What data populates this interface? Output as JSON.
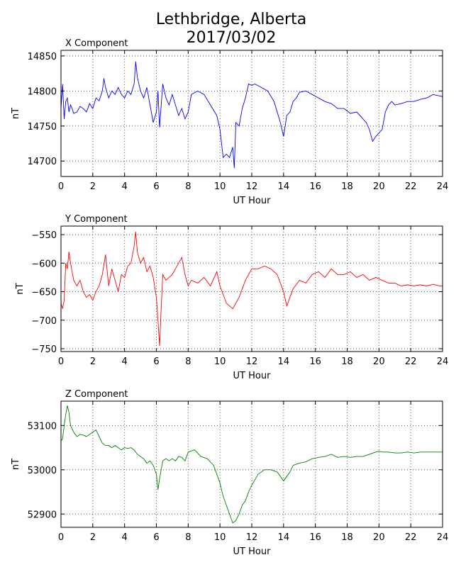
{
  "figure_title_line1": "Lethbridge, Alberta",
  "figure_title_line2": "2017/03/02",
  "colors": {
    "X": "#0000ff",
    "Y": "#ff0000",
    "Z": "#008000",
    "grid": "#555555"
  },
  "chart_data": [
    {
      "type": "line",
      "title": "X Component",
      "xlabel": "UT Hour",
      "ylabel": "nT",
      "xlim": [
        0,
        24
      ],
      "ylim": [
        14678,
        14858
      ],
      "xticks": [
        0,
        2,
        4,
        6,
        8,
        10,
        12,
        14,
        16,
        18,
        20,
        22,
        24
      ],
      "yticks": [
        14700,
        14750,
        14800,
        14850
      ],
      "grid": true,
      "series": [
        {
          "color": "#0000ff",
          "x": [
            0,
            0.1,
            0.2,
            0.3,
            0.4,
            0.5,
            0.6,
            0.7,
            0.8,
            1.0,
            1.2,
            1.4,
            1.6,
            1.8,
            2.0,
            2.2,
            2.4,
            2.6,
            2.7,
            2.8,
            3.0,
            3.2,
            3.4,
            3.6,
            3.8,
            4.0,
            4.2,
            4.4,
            4.6,
            4.7,
            4.8,
            5.0,
            5.2,
            5.4,
            5.6,
            5.8,
            6.0,
            6.1,
            6.2,
            6.4,
            6.6,
            6.8,
            7.0,
            7.2,
            7.4,
            7.6,
            7.8,
            8.0,
            8.2,
            8.6,
            9.0,
            9.4,
            9.8,
            10.0,
            10.2,
            10.4,
            10.6,
            10.8,
            10.9,
            11.0,
            11.2,
            11.4,
            11.6,
            11.8,
            12.0,
            12.2,
            12.6,
            13.0,
            13.4,
            13.8,
            14.0,
            14.2,
            14.4,
            14.6,
            14.8,
            15.0,
            15.4,
            15.8,
            16.2,
            16.6,
            17.0,
            17.4,
            17.8,
            18.2,
            18.6,
            19.0,
            19.2,
            19.4,
            19.6,
            19.8,
            20.0,
            20.2,
            20.4,
            20.6,
            20.8,
            21.0,
            21.4,
            21.8,
            22.2,
            22.6,
            23.0,
            23.4,
            23.8,
            24.0
          ],
          "y": [
            14775,
            14810,
            14760,
            14785,
            14790,
            14770,
            14780,
            14775,
            14768,
            14770,
            14778,
            14775,
            14770,
            14782,
            14775,
            14790,
            14786,
            14800,
            14818,
            14805,
            14790,
            14800,
            14795,
            14805,
            14795,
            14790,
            14800,
            14795,
            14810,
            14842,
            14820,
            14800,
            14790,
            14805,
            14780,
            14755,
            14770,
            14800,
            14748,
            14810,
            14790,
            14780,
            14795,
            14780,
            14765,
            14775,
            14760,
            14770,
            14795,
            14800,
            14795,
            14780,
            14765,
            14745,
            14705,
            14710,
            14705,
            14720,
            14690,
            14755,
            14750,
            14775,
            14790,
            14810,
            14808,
            14810,
            14805,
            14800,
            14785,
            14755,
            14735,
            14765,
            14770,
            14785,
            14790,
            14798,
            14800,
            14795,
            14790,
            14785,
            14782,
            14775,
            14775,
            14768,
            14770,
            14760,
            14755,
            14745,
            14728,
            14735,
            14740,
            14745,
            14770,
            14780,
            14785,
            14780,
            14782,
            14785,
            14785,
            14788,
            14790,
            14795,
            14793,
            14792
          ]
        }
      ]
    },
    {
      "type": "line",
      "title": "Y Component",
      "xlabel": "UT Hour",
      "ylabel": "nT",
      "xlim": [
        0,
        24
      ],
      "ylim": [
        -755,
        -535
      ],
      "xticks": [
        0,
        2,
        4,
        6,
        8,
        10,
        12,
        14,
        16,
        18,
        20,
        22,
        24
      ],
      "yticks": [
        -550,
        -600,
        -650,
        -700,
        -750
      ],
      "grid": true,
      "series": [
        {
          "color": "#ff0000",
          "x": [
            0,
            0.1,
            0.2,
            0.3,
            0.4,
            0.5,
            0.6,
            0.8,
            1.0,
            1.2,
            1.4,
            1.6,
            1.8,
            2.0,
            2.2,
            2.4,
            2.6,
            2.8,
            3.0,
            3.2,
            3.4,
            3.6,
            3.8,
            4.0,
            4.2,
            4.4,
            4.6,
            4.7,
            4.8,
            5.0,
            5.2,
            5.4,
            5.6,
            5.8,
            6.0,
            6.1,
            6.2,
            6.3,
            6.4,
            6.6,
            6.8,
            7.0,
            7.2,
            7.4,
            7.6,
            7.8,
            8.0,
            8.2,
            8.6,
            9.0,
            9.4,
            9.8,
            10.0,
            10.4,
            10.8,
            11.0,
            11.2,
            11.6,
            12.0,
            12.4,
            12.8,
            13.2,
            13.6,
            14.0,
            14.2,
            14.4,
            14.6,
            15.0,
            15.4,
            15.8,
            16.2,
            16.6,
            17.0,
            17.4,
            17.8,
            18.2,
            18.6,
            19.0,
            19.4,
            19.8,
            20.2,
            20.6,
            21.0,
            21.4,
            21.8,
            22.2,
            22.6,
            23.0,
            23.4,
            23.8,
            24.0
          ],
          "y": [
            -670,
            -680,
            -665,
            -600,
            -610,
            -580,
            -600,
            -630,
            -640,
            -630,
            -650,
            -660,
            -655,
            -665,
            -650,
            -640,
            -620,
            -585,
            -640,
            -610,
            -630,
            -650,
            -620,
            -625,
            -605,
            -600,
            -570,
            -545,
            -580,
            -600,
            -590,
            -615,
            -605,
            -625,
            -660,
            -700,
            -745,
            -680,
            -620,
            -630,
            -625,
            -620,
            -610,
            -600,
            -590,
            -620,
            -640,
            -630,
            -635,
            -625,
            -640,
            -615,
            -640,
            -670,
            -680,
            -670,
            -660,
            -630,
            -610,
            -610,
            -605,
            -610,
            -620,
            -650,
            -675,
            -660,
            -645,
            -630,
            -635,
            -620,
            -615,
            -625,
            -610,
            -620,
            -620,
            -615,
            -625,
            -620,
            -630,
            -625,
            -630,
            -635,
            -635,
            -640,
            -638,
            -640,
            -638,
            -640,
            -637,
            -640,
            -640
          ]
        }
      ]
    },
    {
      "type": "line",
      "title": "Z Component",
      "xlabel": "UT Hour",
      "ylabel": "nT",
      "xlim": [
        0,
        24
      ],
      "ylim": [
        52870,
        53155
      ],
      "xticks": [
        0,
        2,
        4,
        6,
        8,
        10,
        12,
        14,
        16,
        18,
        20,
        22,
        24
      ],
      "yticks": [
        52900,
        53000,
        53100
      ],
      "grid": true,
      "series": [
        {
          "color": "#008000",
          "x": [
            0,
            0.1,
            0.2,
            0.3,
            0.4,
            0.5,
            0.6,
            0.8,
            1.0,
            1.2,
            1.4,
            1.6,
            1.8,
            2.0,
            2.2,
            2.4,
            2.6,
            2.8,
            3.0,
            3.2,
            3.4,
            3.6,
            3.8,
            4.0,
            4.2,
            4.4,
            4.6,
            4.8,
            5.0,
            5.2,
            5.4,
            5.6,
            5.8,
            6.0,
            6.1,
            6.2,
            6.4,
            6.6,
            6.8,
            7.0,
            7.2,
            7.4,
            7.6,
            7.8,
            8.0,
            8.4,
            8.8,
            9.2,
            9.6,
            10.0,
            10.2,
            10.4,
            10.6,
            10.8,
            11.0,
            11.2,
            11.4,
            11.6,
            11.8,
            12.0,
            12.4,
            12.8,
            13.2,
            13.6,
            14.0,
            14.2,
            14.4,
            14.6,
            15.0,
            15.4,
            15.8,
            16.2,
            16.6,
            17.0,
            17.4,
            17.8,
            18.2,
            18.6,
            19.0,
            19.4,
            19.8,
            20.0,
            20.2,
            20.6,
            21.0,
            21.4,
            21.8,
            22.2,
            22.6,
            23.0,
            23.4,
            23.8,
            24.0
          ],
          "y": [
            53065,
            53070,
            53100,
            53125,
            53145,
            53130,
            53100,
            53085,
            53075,
            53080,
            53078,
            53075,
            53080,
            53085,
            53090,
            53075,
            53060,
            53055,
            53055,
            53050,
            53055,
            53050,
            53045,
            53050,
            53048,
            53050,
            53045,
            53035,
            53030,
            53025,
            53015,
            53020,
            53010,
            52990,
            52955,
            52980,
            53020,
            53025,
            53020,
            53025,
            53020,
            53030,
            53028,
            53020,
            53040,
            53045,
            53030,
            53025,
            53010,
            52970,
            52940,
            52920,
            52900,
            52880,
            52885,
            52900,
            52920,
            52930,
            52950,
            52965,
            52990,
            53000,
            53000,
            52995,
            52975,
            52985,
            52995,
            53010,
            53015,
            53018,
            53025,
            53028,
            53030,
            53035,
            53028,
            53030,
            53028,
            53030,
            53030,
            53035,
            53040,
            53042,
            53040,
            53040,
            53038,
            53038,
            53040,
            53038,
            53040,
            53040,
            53040,
            53040,
            53040
          ]
        }
      ]
    }
  ]
}
